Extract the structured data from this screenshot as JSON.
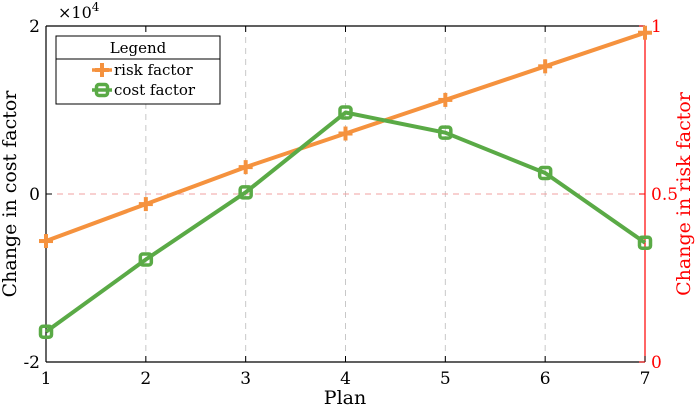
{
  "chart_data": {
    "type": "line",
    "xlabel": "Plan",
    "x": [
      1,
      2,
      3,
      4,
      5,
      6,
      7
    ],
    "x_ticks": [
      "1",
      "2",
      "3",
      "4",
      "5",
      "6",
      "7"
    ],
    "xlim": [
      1,
      7
    ],
    "y_left": {
      "label": "Change in cost factor",
      "ylim": [
        -2,
        2
      ],
      "ticks": [
        "-2",
        "0",
        "2"
      ],
      "tick_values": [
        -2,
        0,
        2
      ],
      "exponent_base": "×10",
      "exponent_power": "4",
      "color": "#000000"
    },
    "y_right": {
      "label": "Change in risk factor",
      "ylim": [
        0,
        1
      ],
      "ticks": [
        "0",
        "0.5",
        "1"
      ],
      "tick_values": [
        0,
        0.5,
        1
      ],
      "color": "#ff0000"
    },
    "series": [
      {
        "name": "risk factor",
        "axis": "right",
        "marker": "plus",
        "color": "#f5923e",
        "values": [
          0.36,
          0.47,
          0.58,
          0.68,
          0.78,
          0.88,
          0.98
        ]
      },
      {
        "name": "cost factor",
        "axis": "left",
        "marker": "square",
        "color": "#5aaa46",
        "values": [
          -1.64,
          -0.78,
          0.02,
          0.97,
          0.73,
          0.25,
          -0.58
        ]
      }
    ],
    "legend": {
      "title": "Legend",
      "position": "top-left"
    },
    "grid": true,
    "zero_line_color": "#f0a0a0"
  }
}
